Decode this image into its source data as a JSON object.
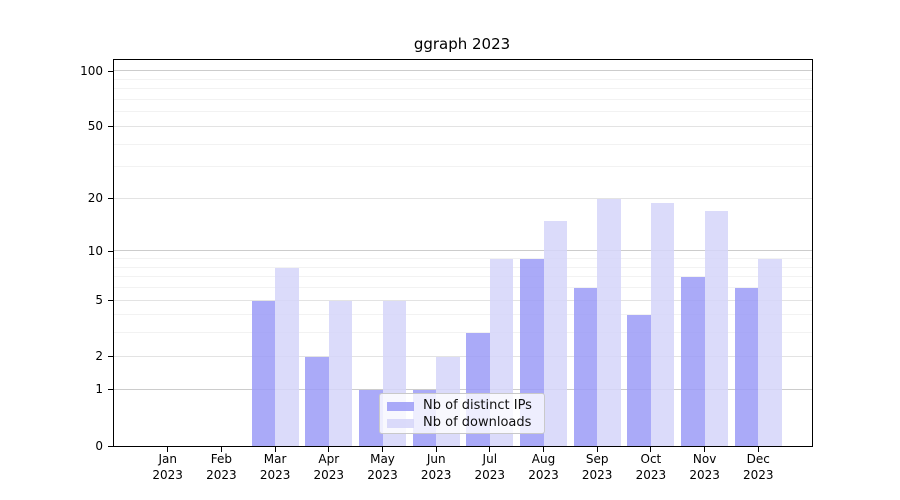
{
  "title": "ggraph 2023",
  "colors": {
    "background": "#ffffff",
    "spine": "#000000",
    "text": "#000000",
    "grid_decade": "#cccccc",
    "grid_mid": "#e3e3e3",
    "grid_minor": "#f2f2f2",
    "legend_border": "#c9c9c9",
    "bar_opacity": 0.85,
    "ips_bar": "#9b9bf7",
    "downloads_bar": "#d5d5f9"
  },
  "chart_data": {
    "type": "bar",
    "title": "ggraph 2023",
    "categories": [
      "Jan",
      "Feb",
      "Mar",
      "Apr",
      "May",
      "Jun",
      "Jul",
      "Aug",
      "Sep",
      "Oct",
      "Nov",
      "Dec"
    ],
    "xtick_year": "2023",
    "series": [
      {
        "name": "Nb of distinct IPs",
        "color": "#9b9bf7",
        "values": [
          0,
          0,
          5,
          2,
          1,
          1,
          3,
          9,
          6,
          4,
          7,
          6
        ]
      },
      {
        "name": "Nb of downloads",
        "color": "#d5d5f9",
        "values": [
          0,
          0,
          8,
          5,
          5,
          2,
          9,
          15,
          20,
          19,
          17,
          9
        ]
      }
    ],
    "xlabel": "",
    "ylabel": "",
    "yscale": "log1p",
    "ylim": [
      0,
      115
    ],
    "yticks": [
      0,
      1,
      2,
      5,
      10,
      20,
      50,
      100
    ],
    "yticks_minor": [
      3,
      4,
      6,
      7,
      8,
      9,
      30,
      40,
      60,
      70,
      80,
      90
    ],
    "grid": "on",
    "legend_position": "lower center"
  },
  "legend": {
    "items": [
      {
        "label": "Nb of distinct IPs"
      },
      {
        "label": "Nb of downloads"
      }
    ]
  }
}
